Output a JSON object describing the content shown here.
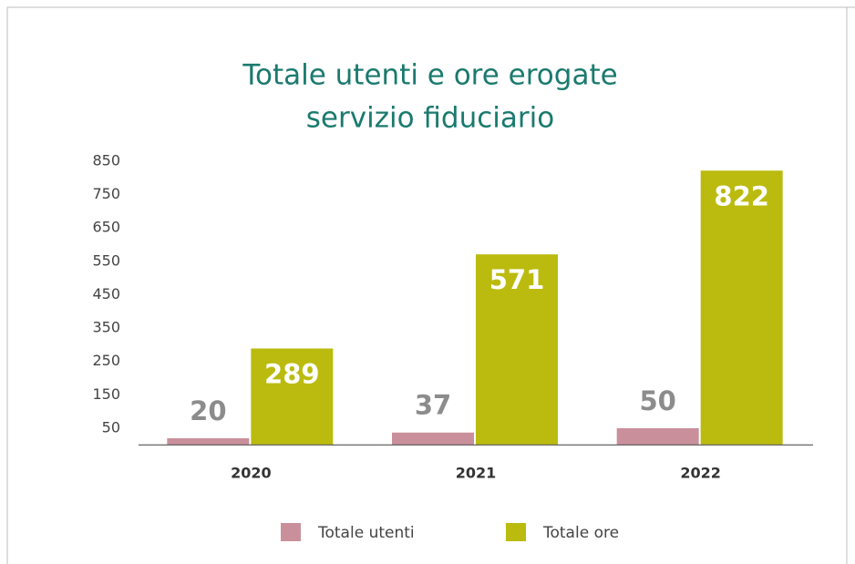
{
  "chart_data": {
    "type": "bar",
    "title": [
      "Totale utenti e ore erogate",
      "servizio fiduciario"
    ],
    "categories": [
      "2020",
      "2021",
      "2022"
    ],
    "series": [
      {
        "name": "Totale utenti",
        "color": "#c9909b",
        "values": [
          20,
          37,
          50
        ]
      },
      {
        "name": "Totale ore",
        "color": "#bbbb0f",
        "values": [
          289,
          571,
          822
        ]
      }
    ],
    "ylim": [
      0,
      850
    ],
    "yticks": [
      50,
      150,
      250,
      350,
      450,
      550,
      650,
      750,
      850
    ],
    "grid": false,
    "legend": "bottom"
  }
}
